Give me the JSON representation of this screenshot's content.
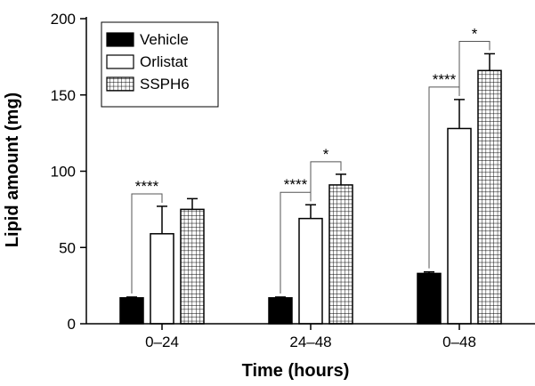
{
  "chart_data": {
    "type": "bar",
    "title": "",
    "xlabel": "Time (hours)",
    "ylabel": "Lipid amount (mg)",
    "ylim": [
      0,
      200
    ],
    "yticks": [
      0,
      50,
      100,
      150,
      200
    ],
    "grid": false,
    "legend_position": "top-left",
    "categories": [
      "0–24",
      "24–48",
      "0–48"
    ],
    "series": [
      {
        "name": "Vehicle",
        "fill": "solid",
        "color": "#000000",
        "values": [
          17,
          17,
          33
        ],
        "errors": [
          0.5,
          0.5,
          1
        ]
      },
      {
        "name": "Orlistat",
        "fill": "none",
        "color": "#ffffff",
        "values": [
          59,
          69,
          128
        ],
        "errors": [
          18,
          9,
          19
        ]
      },
      {
        "name": "SSPH6",
        "fill": "grid",
        "color": "#ffffff",
        "values": [
          75,
          91,
          166
        ],
        "errors": [
          7,
          7,
          11
        ]
      }
    ],
    "significance": [
      {
        "category": 0,
        "from": 0,
        "to": 1,
        "label": "****"
      },
      {
        "category": 1,
        "from": 0,
        "to": 1,
        "label": "****"
      },
      {
        "category": 1,
        "from": 1,
        "to": 2,
        "label": "*"
      },
      {
        "category": 2,
        "from": 0,
        "to": 1,
        "label": "****"
      },
      {
        "category": 2,
        "from": 1,
        "to": 2,
        "label": "*"
      }
    ]
  }
}
